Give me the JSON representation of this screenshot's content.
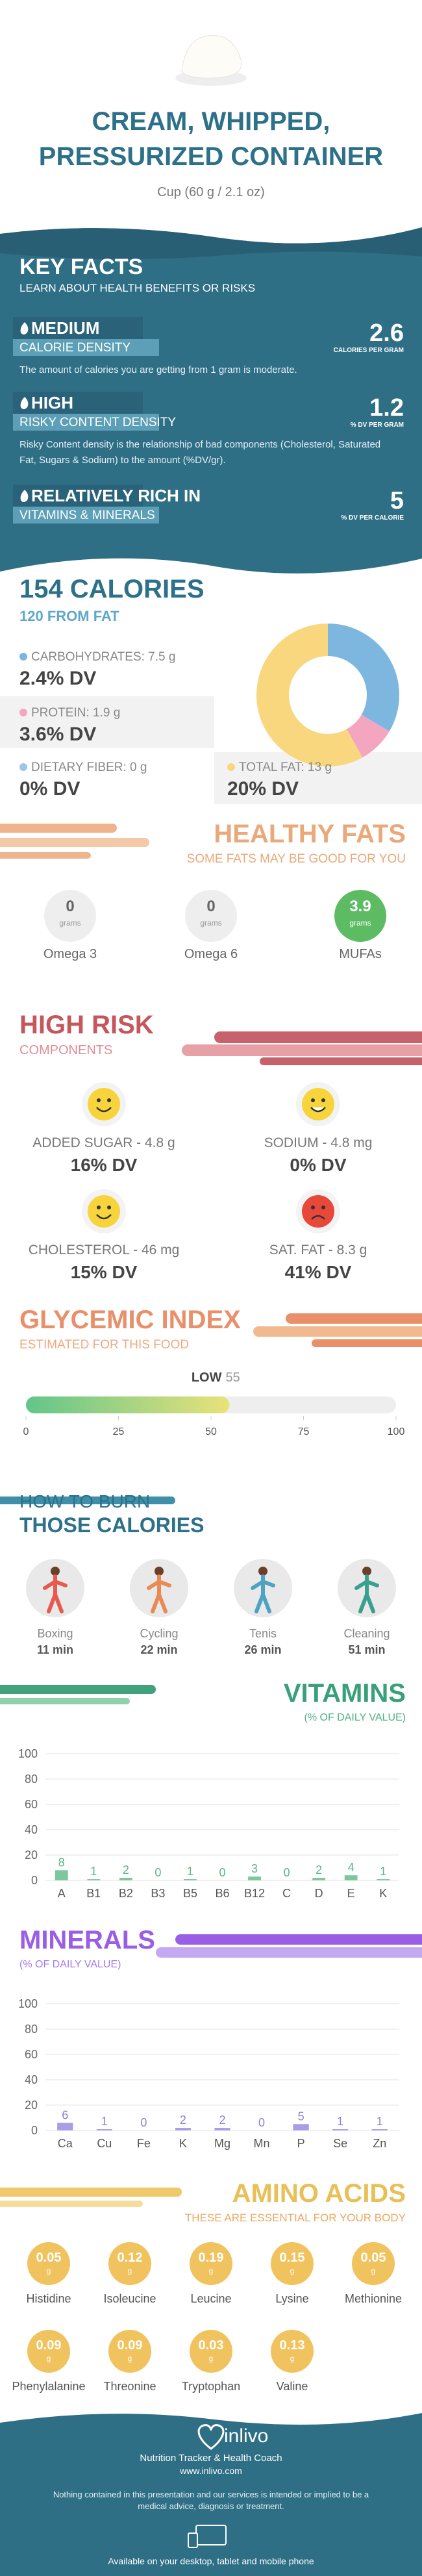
{
  "header": {
    "title": "CREAM, WHIPPED, PRESSURIZED CONTAINER",
    "serving": "Cup (60 g / 2.1 oz)"
  },
  "key_facts": {
    "title": "KEY FACTS",
    "subtitle": "LEARN ABOUT HEALTH BENEFITS OR RISKS",
    "facts": [
      {
        "level": "MEDIUM",
        "label": "CALORIE DENSITY",
        "value": 2.6,
        "unit": "CALORIES PER GRAM",
        "description": "The amount of calories you are getting from 1 gram is moderate."
      },
      {
        "level": "HIGH",
        "label": "RISKY CONTENT DENSITY",
        "value": 1.2,
        "unit": "% DV PER GRAM",
        "description": "Risky Content density is the relationship of bad components (Cholesterol, Saturated Fat, Sugars & Sodium) to the amount (%DV/gr)."
      },
      {
        "level": "RELATIVELY RICH IN",
        "label": "VITAMINS & MINERALS",
        "value": 5,
        "unit": "% DV PER CALORIE"
      }
    ]
  },
  "calories": {
    "title": "154 CALORIES",
    "from_fat": "120 FROM FAT",
    "nutrients": [
      {
        "label": "CARBOHYDRATES: 7.5 g",
        "dv": "2.4% DV",
        "color": "#7db7e0"
      },
      {
        "label": "PROTEIN: 1.9 g",
        "dv": "3.6% DV",
        "color": "#f4a6c0"
      },
      {
        "label": "DIETARY FIBER: 0 g",
        "dv": "0% DV",
        "color": "#9fc5e8"
      },
      {
        "label": "TOTAL FAT: 13 g",
        "dv": "20% DV",
        "color": "#f8d77e"
      }
    ],
    "donut": {
      "values": [
        7.5,
        1.9,
        0,
        13
      ]
    }
  },
  "healthy_fats": {
    "title": "HEALTHY FATS",
    "subtitle": "SOME FATS MAY BE GOOD FOR YOU",
    "unit": "grams",
    "items": [
      {
        "name": "Omega 3",
        "value": 0
      },
      {
        "name": "Omega 6",
        "value": 0
      },
      {
        "name": "MUFAs",
        "value": 3.9
      }
    ]
  },
  "high_risk": {
    "title": "HIGH RISK",
    "subtitle": "COMPONENTS",
    "items": [
      {
        "label": "ADDED SUGAR - 4.8 g",
        "dv": "16% DV",
        "face": "smile"
      },
      {
        "label": "SODIUM - 4.8 mg",
        "dv": "0% DV",
        "face": "grin"
      },
      {
        "label": "CHOLESTEROL - 46 mg",
        "dv": "15% DV",
        "face": "smile"
      },
      {
        "label": "SAT. FAT - 8.3 g",
        "dv": "41% DV",
        "face": "sad"
      }
    ]
  },
  "glycemic": {
    "title": "GLYCEMIC INDEX",
    "subtitle": "ESTIMATED FOR THIS FOOD",
    "level": "LOW",
    "value": 55,
    "xlim": [
      0,
      100
    ],
    "xticks": [
      0,
      25,
      50,
      75,
      100
    ]
  },
  "burn": {
    "title": "HOW TO BURN",
    "subtitle": "THOSE CALORIES",
    "activities": [
      {
        "name": "Boxing",
        "time": "11 min"
      },
      {
        "name": "Cycling",
        "time": "22 min"
      },
      {
        "name": "Tenis",
        "time": "26 min"
      },
      {
        "name": "Cleaning",
        "time": "51 min"
      }
    ]
  },
  "vitamins": {
    "type": "bar",
    "title": "VITAMINS",
    "subtitle": "(% OF DAILY VALUE)",
    "categories": [
      "A",
      "B1",
      "B2",
      "B3",
      "B5",
      "B6",
      "B12",
      "C",
      "D",
      "E",
      "K"
    ],
    "values": [
      8,
      1,
      2,
      0,
      1,
      0,
      3,
      0,
      2,
      4,
      1
    ],
    "color": "#7cc79b",
    "ylim": [
      0,
      100
    ],
    "yticks": [
      0,
      20,
      40,
      60,
      80,
      100
    ]
  },
  "minerals": {
    "type": "bar",
    "title": "MINERALS",
    "subtitle": "(% OF DAILY VALUE)",
    "categories": [
      "Ca",
      "Cu",
      "Fe",
      "K",
      "Mg",
      "Mn",
      "P",
      "Se",
      "Zn"
    ],
    "values": [
      6,
      1,
      0,
      2,
      2,
      0,
      5,
      1,
      1
    ],
    "color": "#a99de6",
    "ylim": [
      0,
      100
    ],
    "yticks": [
      0,
      20,
      40,
      60,
      80,
      100
    ]
  },
  "amino_acids": {
    "title": "AMINO ACIDS",
    "subtitle": "THESE ARE ESSENTIAL FOR YOUR BODY",
    "unit": "g",
    "items": [
      {
        "name": "Histidine",
        "value": 0.05
      },
      {
        "name": "Isoleucine",
        "value": 0.12
      },
      {
        "name": "Leucine",
        "value": 0.19
      },
      {
        "name": "Lysine",
        "value": 0.15
      },
      {
        "name": "Methionine",
        "value": 0.05
      },
      {
        "name": "Phenylalanine",
        "value": 0.09
      },
      {
        "name": "Threonine",
        "value": 0.09
      },
      {
        "name": "Tryptophan",
        "value": 0.03
      },
      {
        "name": "Valine",
        "value": 0.13
      }
    ]
  },
  "footer": {
    "brand": "inlivo",
    "tagline": "Nutrition Tracker & Health Coach",
    "url": "www.inlivo.com",
    "disclaimer": "Nothing contained in this presentation and our services is intended or implied to be a medical advice, diagnosis or treatment.",
    "available": "Available on your desktop, tablet and mobile phone"
  }
}
